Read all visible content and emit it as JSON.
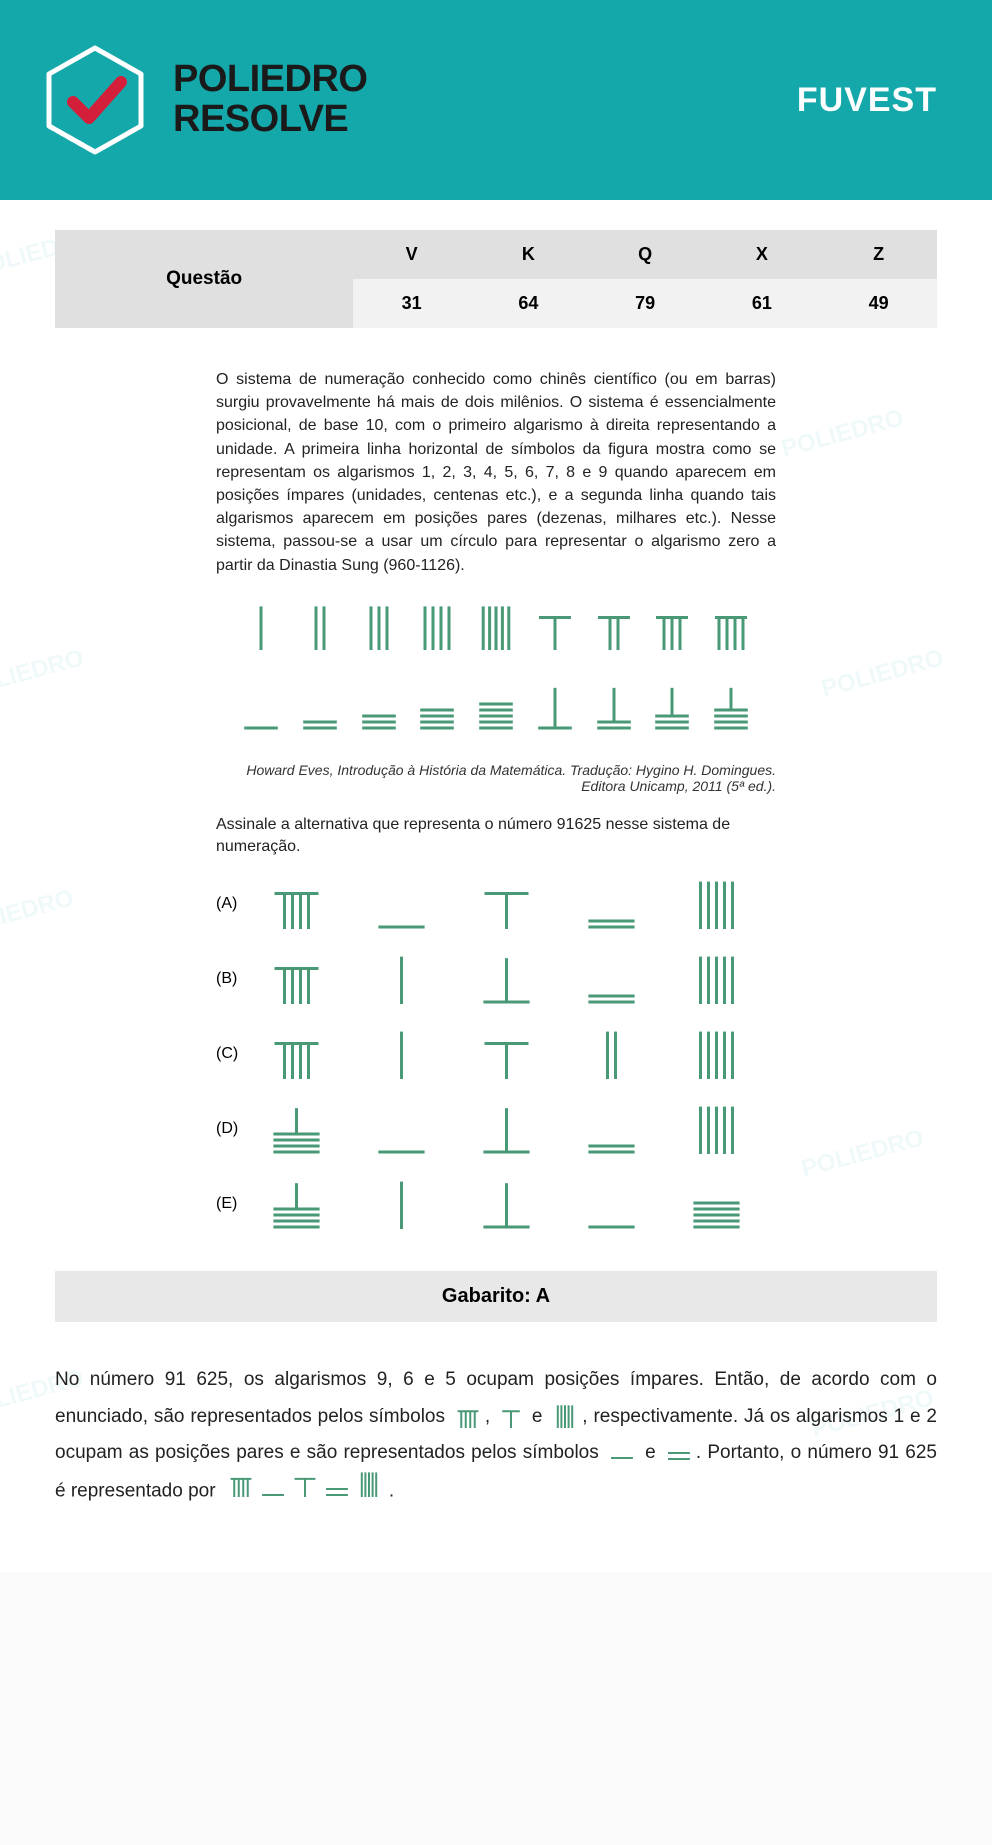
{
  "branding": {
    "logo_line1": "POLIEDRO",
    "logo_line2": "RESOLVE",
    "exam": "FUVEST",
    "watermark": "POLIEDRO"
  },
  "table": {
    "question_label": "Questão",
    "columns": [
      "V",
      "K",
      "Q",
      "X",
      "Z"
    ],
    "values": [
      "31",
      "64",
      "79",
      "61",
      "49"
    ]
  },
  "problem_text": "O sistema de numeração conhecido como chinês científico (ou em barras) surgiu provavelmente há mais de dois milênios. O sistema é essencialmente posicional, de base 10, com o primeiro algarismo à direita representando a unidade. A primeira linha horizontal de símbolos da figura mostra como se representam os algarismos 1, 2, 3, 4, 5, 6, 7, 8 e 9 quando aparecem em posições ímpares (unidades, centenas etc.), e a segunda linha quando tais algarismos aparecem em posições pares (dezenas, milhares etc.). Nesse sistema, passou-se a usar um círculo para representar o algarismo zero a partir da Dinastia Sung (960-1126).",
  "citation": {
    "author": "Howard Eves, ",
    "title": "Introdução à História da Matemática.",
    "rest": " Tradução: Hygino H. Domingues. Editora Unicamp, 2011 (5ª ed.)."
  },
  "prompt_text": "Assinale a alternativa que representa o número 91625 nesse sistema de numeração.",
  "rod_color": "#4a9976",
  "rod_defs": {
    "odd": [
      {
        "n": 1,
        "v": 1,
        "top": false
      },
      {
        "n": 2,
        "v": 2,
        "top": false
      },
      {
        "n": 3,
        "v": 3,
        "top": false
      },
      {
        "n": 4,
        "v": 4,
        "top": false
      },
      {
        "n": 5,
        "v": 5,
        "top": false
      },
      {
        "n": 6,
        "v": 1,
        "top": true
      },
      {
        "n": 7,
        "v": 2,
        "top": true
      },
      {
        "n": 8,
        "v": 3,
        "top": true
      },
      {
        "n": 9,
        "v": 4,
        "top": true
      }
    ],
    "even": [
      {
        "n": 1,
        "h": 1,
        "tv": false
      },
      {
        "n": 2,
        "h": 2,
        "tv": false
      },
      {
        "n": 3,
        "h": 3,
        "tv": false
      },
      {
        "n": 4,
        "h": 4,
        "tv": false
      },
      {
        "n": 5,
        "h": 5,
        "tv": false
      },
      {
        "n": 6,
        "h": 1,
        "tv": true
      },
      {
        "n": 7,
        "h": 2,
        "tv": true
      },
      {
        "n": 8,
        "h": 3,
        "tv": true
      },
      {
        "n": 9,
        "h": 4,
        "tv": true
      }
    ]
  },
  "alternatives": [
    {
      "label": "(A)",
      "digits": [
        {
          "t": "odd",
          "n": 9
        },
        {
          "t": "even",
          "n": 1
        },
        {
          "t": "odd",
          "n": 6
        },
        {
          "t": "even",
          "n": 2
        },
        {
          "t": "odd",
          "n": 5
        }
      ]
    },
    {
      "label": "(B)",
      "digits": [
        {
          "t": "odd",
          "n": 9
        },
        {
          "t": "odd",
          "n": 1
        },
        {
          "t": "even",
          "n": 6
        },
        {
          "t": "even",
          "n": 2
        },
        {
          "t": "odd",
          "n": 5
        }
      ]
    },
    {
      "label": "(C)",
      "digits": [
        {
          "t": "odd",
          "n": 9
        },
        {
          "t": "odd",
          "n": 1
        },
        {
          "t": "odd",
          "n": 6
        },
        {
          "t": "odd",
          "n": 2
        },
        {
          "t": "odd",
          "n": 5
        }
      ]
    },
    {
      "label": "(D)",
      "digits": [
        {
          "t": "even",
          "n": 9
        },
        {
          "t": "even",
          "n": 1
        },
        {
          "t": "even",
          "n": 6
        },
        {
          "t": "even",
          "n": 2
        },
        {
          "t": "odd",
          "n": 5
        }
      ]
    },
    {
      "label": "(E)",
      "digits": [
        {
          "t": "even",
          "n": 9
        },
        {
          "t": "odd",
          "n": 1
        },
        {
          "t": "even",
          "n": 6
        },
        {
          "t": "even",
          "n": 1
        },
        {
          "t": "even",
          "n": 5
        }
      ]
    }
  ],
  "gabarito_label": "Gabarito: A",
  "explanation": {
    "p1a": "No número 91 625, os algarismos 9, 6 e 5 ocupam posições ímpares. Então, de acordo com o enunciado, são representados pelos símbolos ",
    "p1b": ", ",
    "p1c": " e ",
    "p1d": ", respectivamente. Já os algarismos 1 e 2 ocupam as posições pares e são representados pelos símbolos ",
    "p1e": " e ",
    "p1f": ". Portanto, o número 91 625 é representado por ",
    "p1g": "."
  },
  "colors": {
    "header_bg": "#14a8ab",
    "check": "#d41f3a",
    "table_header": "#e0e0e0",
    "table_cell": "#f2f2f2",
    "gabarito_bg": "#e8e8e8"
  }
}
